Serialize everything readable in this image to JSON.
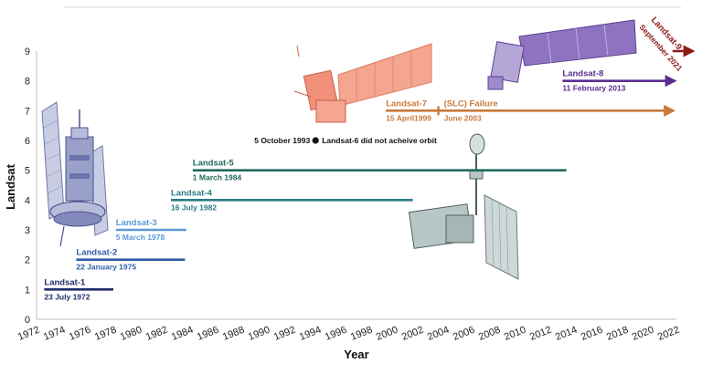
{
  "chart_data": {
    "type": "timeline",
    "xlabel": "Year",
    "ylabel": "Landsat",
    "xlim": [
      1972,
      2022
    ],
    "ylim": [
      0,
      9
    ],
    "xticks": [
      "1972",
      "1974",
      "1976",
      "1978",
      "1980",
      "1982",
      "1984",
      "1986",
      "1988",
      "1990",
      "1992",
      "1994",
      "1996",
      "1998",
      "2000",
      "2002",
      "2004",
      "2006",
      "2008",
      "2010",
      "2012",
      "2014",
      "2016",
      "2018",
      "2020",
      "2022"
    ],
    "yticks": [
      "0",
      "1",
      "2",
      "3",
      "4",
      "5",
      "6",
      "7",
      "8",
      "9"
    ],
    "missions": [
      {
        "name": "Landsat-1",
        "launch": "23 July 1972",
        "start": 1972.6,
        "end": 1978.0,
        "level": 1,
        "color": "#1f2d6b",
        "arrow": false
      },
      {
        "name": "Landsat-2",
        "launch": "22 January 1975",
        "start": 1975.1,
        "end": 1983.6,
        "level": 2,
        "color": "#2f5ca8",
        "arrow": false
      },
      {
        "name": "Landsat-3",
        "launch": "5 March 1978",
        "start": 1978.2,
        "end": 1983.7,
        "level": 3,
        "color": "#5b9bd5",
        "arrow": false
      },
      {
        "name": "Landsat-4",
        "launch": "16 July 1982",
        "start": 1982.5,
        "end": 2001.4,
        "level": 4,
        "color": "#2c7c86",
        "arrow": false
      },
      {
        "name": "Landsat-5",
        "launch": "1 March 1984",
        "start": 1984.2,
        "end": 2013.4,
        "level": 5,
        "color": "#1f6a5c",
        "arrow": false
      },
      {
        "name": "Landsat-7",
        "launch": "15 April1999",
        "start": 1999.3,
        "end": 2021.9,
        "level": 7,
        "color": "#c97a3c",
        "arrow": true
      },
      {
        "name": "Landsat-8",
        "launch": "11 February 2013",
        "start": 2013.1,
        "end": 2022.0,
        "level": 8,
        "color": "#5b2d91",
        "arrow": true
      }
    ],
    "landsat6": {
      "date": "5 October 1993",
      "label": "Landsat-6 did not acheive orbit",
      "x": 1993.8,
      "level": 6
    },
    "slc": {
      "label": "(SLC) Failure",
      "date": "June 2003",
      "x": 2003.4,
      "level": 7,
      "color": "#c97a3c"
    },
    "landsat9": {
      "name": "Landsat-9",
      "date": "September 2021",
      "start": 2021.7,
      "level": 9,
      "color": "#8b1a1a"
    }
  }
}
